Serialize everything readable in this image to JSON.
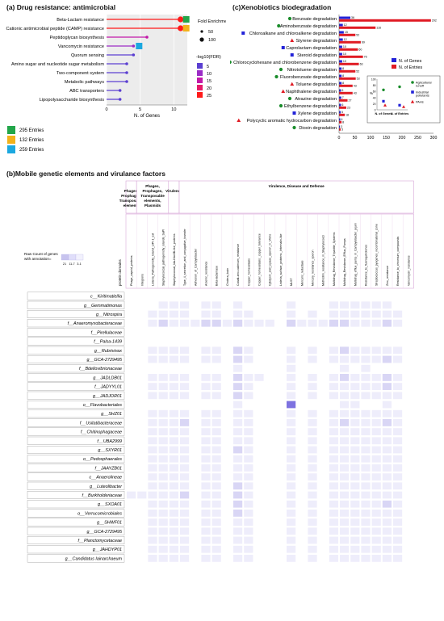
{
  "panel_a": {
    "title": "(a) Drug resistance: antimicrobial",
    "legend_size_title": "Fold Enrichment",
    "legend_size_items": [
      "50",
      "100"
    ],
    "legend_color_title": "-log10(FDR)",
    "legend_color_items": [
      {
        "label": "5",
        "color": "#5b3fd1"
      },
      {
        "label": "10",
        "color": "#9b2cc6"
      },
      {
        "label": "15",
        "color": "#c218a8"
      },
      {
        "label": "20",
        "color": "#e61a6a"
      },
      {
        "label": "25",
        "color": "#ff1a1a"
      }
    ],
    "entry_legend": [
      {
        "label": "295 Entries",
        "color": "#22a64a"
      },
      {
        "label": "132 Entries",
        "color": "#f2b21b"
      },
      {
        "label": "259 Entries",
        "color": "#1ba8e0"
      }
    ]
  },
  "panel_c": {
    "title": "(c)Xenobiotics biodegradation",
    "legend": [
      {
        "label": "N. of Genes",
        "color": "#2323d8"
      },
      {
        "label": "N. of Entries",
        "color": "#e01b24"
      }
    ],
    "inset": {
      "x_labels": [
        "N. of Genes",
        "N. of Entries"
      ],
      "y_label": "%",
      "y_ticks": [
        "100",
        "80",
        "60",
        "40",
        "20",
        "0"
      ],
      "legend": [
        {
          "label": "Agricultural runoff",
          "color": "#1a8c2b",
          "shape": "circle"
        },
        {
          "label": "Industrial pollutants",
          "color": "#2323d8",
          "shape": "square"
        },
        {
          "label": "PAHs",
          "color": "#e01b24",
          "shape": "triangle"
        }
      ]
    }
  },
  "panel_b": {
    "title": "(b)Mobile genetic elements and virulance factors",
    "groups": [
      {
        "label": "Phages, Prophages, Transposable elements",
        "span": 1
      },
      {
        "label": "Phages, Prophages, Transposable elements, Plasmids",
        "span": 3
      },
      {
        "label": "Virulence",
        "span": 1
      },
      {
        "label": "Virulence, Disease and Defense",
        "span": 22
      }
    ],
    "columns": [
      "Phage_capsid_proteins",
      "Integrons",
      "Listeria_Pathogenicity_Island_LIPI-1_ext",
      "Staphylococcal_pathogenicity_islands_SaPI",
      "Staphylococcal_Ida-Nbc0B-like_proteins",
      "Type_4_secretion_and_conjugative_transfer",
      "Adhesion_of_Campylobacter",
      "Arsenic_resistance",
      "Beta-lactamase",
      "Cholera_toxin",
      "Cobalt-zinc-cadmium_resistance",
      "Copper_homeostasis",
      "Copper_homeostasis:_copper_tolerance",
      "Cytolysin_and_Lipase_operon_in_Vibrio",
      "Listeria_surface_proteins:_Internalin-like",
      "MLST",
      "Mercuric_reductase",
      "Mercury_resistance_operon",
      "Methicillin_resistance_in_Staphylococci",
      "Multidrug_Resistance_Tripartite_Systems",
      "Multidrug_Resistance_Efflux_Pumps",
      "Multidrug_efflux_pump_in_Campylobacter_jejuni",
      "Resistance_to_fluoroquinolones",
      "Streptococcus_pyogenes_recombinatorial_zone",
      "Zinc_resistance",
      "Resistance_to_chromium_compounds",
      "Vancomycin_resistance"
    ],
    "row_axis_label": "protein domains",
    "legend_title": "Raw Count of genes with annotation=",
    "legend_ticks": [
      "21",
      "11-7",
      "3-1"
    ],
    "rows": [
      "c__Kiritimatiellia",
      "g__Gemmatimonas",
      "g__Nitrospira",
      "f__Anaeromyxobacteraceae",
      "f__Pirellulaceae",
      "f__Palsa-1439",
      "g__Rubrivivax",
      "g__GCA-2729495",
      "f__Bdellovibrionaceae",
      "g__JADLDB01",
      "f__JADYYL01",
      "g__JADJOR01",
      "o__Flavobacteriales",
      "g__SHZ01",
      "f__Usitatibacteraceae",
      "f__Chitinophagaceae",
      "f__UBA2999",
      "g__SXYR01",
      "o__Pedosphaerales",
      "f__JAAYZB01",
      "c__Anaerolineae",
      "g__Luteolibacter",
      "f__Burkholderiaceae",
      "g__SXOA01",
      "o__Verrucomicrobiales",
      "g__SHWF01",
      "g__GCA-2729495",
      "f__Planctomycetaceae",
      "g__JAHDYP01",
      "g__Candidatus_Iainarchaeum"
    ],
    "matrix": [
      [
        0,
        0,
        0,
        0,
        0,
        0,
        0,
        0,
        0,
        0,
        0,
        0,
        0,
        0,
        0,
        0,
        0,
        0,
        0,
        0,
        0,
        0,
        0,
        0,
        0,
        0,
        0
      ],
      [
        0,
        0,
        0,
        1,
        1,
        1,
        0,
        1,
        1,
        0,
        1,
        0,
        0,
        0,
        0,
        1,
        0,
        0,
        0,
        1,
        1,
        1,
        1,
        1,
        1,
        0,
        0
      ],
      [
        0,
        0,
        1,
        1,
        1,
        1,
        0,
        1,
        1,
        0,
        1,
        1,
        0,
        0,
        0,
        1,
        0,
        1,
        0,
        1,
        1,
        1,
        1,
        1,
        1,
        1,
        0
      ],
      [
        0,
        0,
        1,
        2,
        1,
        1,
        1,
        2,
        2,
        1,
        2,
        1,
        1,
        1,
        0,
        2,
        1,
        1,
        1,
        2,
        2,
        1,
        1,
        1,
        2,
        1,
        0
      ],
      [
        0,
        0,
        0,
        0,
        0,
        0,
        0,
        0,
        0,
        0,
        0,
        0,
        0,
        0,
        0,
        0,
        0,
        0,
        0,
        0,
        0,
        0,
        0,
        0,
        0,
        0,
        0
      ],
      [
        0,
        0,
        0,
        0,
        0,
        0,
        0,
        0,
        0,
        0,
        0,
        0,
        0,
        0,
        0,
        0,
        0,
        0,
        0,
        0,
        0,
        0,
        0,
        0,
        0,
        0,
        0
      ],
      [
        0,
        0,
        1,
        1,
        1,
        1,
        0,
        1,
        1,
        0,
        2,
        1,
        0,
        0,
        0,
        1,
        0,
        1,
        0,
        1,
        2,
        1,
        1,
        1,
        1,
        1,
        0
      ],
      [
        0,
        0,
        1,
        1,
        1,
        1,
        0,
        1,
        1,
        0,
        2,
        1,
        0,
        0,
        0,
        1,
        0,
        1,
        0,
        1,
        1,
        1,
        1,
        1,
        2,
        1,
        0
      ],
      [
        0,
        0,
        0,
        0,
        0,
        0,
        0,
        0,
        0,
        0,
        1,
        0,
        0,
        0,
        0,
        1,
        0,
        0,
        0,
        0,
        1,
        0,
        1,
        0,
        0,
        0,
        0
      ],
      [
        0,
        0,
        1,
        1,
        1,
        1,
        0,
        1,
        1,
        0,
        2,
        1,
        1,
        0,
        0,
        1,
        0,
        1,
        0,
        1,
        2,
        1,
        1,
        1,
        2,
        1,
        0
      ],
      [
        0,
        0,
        1,
        1,
        1,
        1,
        0,
        1,
        1,
        0,
        2,
        1,
        0,
        0,
        0,
        1,
        0,
        1,
        0,
        1,
        1,
        1,
        1,
        1,
        2,
        1,
        0
      ],
      [
        0,
        0,
        1,
        1,
        1,
        1,
        0,
        1,
        1,
        0,
        2,
        1,
        0,
        0,
        0,
        1,
        0,
        1,
        0,
        1,
        1,
        1,
        1,
        1,
        1,
        1,
        0
      ],
      [
        0,
        0,
        0,
        0,
        0,
        0,
        0,
        0,
        0,
        0,
        1,
        0,
        0,
        0,
        0,
        3,
        0,
        0,
        0,
        0,
        1,
        1,
        0,
        0,
        1,
        0,
        0
      ],
      [
        0,
        0,
        1,
        1,
        1,
        1,
        0,
        1,
        1,
        0,
        1,
        1,
        0,
        0,
        0,
        1,
        0,
        1,
        0,
        1,
        1,
        1,
        1,
        1,
        1,
        1,
        0
      ],
      [
        0,
        0,
        1,
        1,
        1,
        2,
        0,
        1,
        1,
        0,
        1,
        1,
        0,
        0,
        0,
        1,
        0,
        1,
        0,
        1,
        2,
        1,
        1,
        1,
        2,
        1,
        0
      ],
      [
        0,
        0,
        1,
        1,
        1,
        1,
        0,
        1,
        1,
        0,
        1,
        1,
        0,
        0,
        0,
        1,
        0,
        1,
        0,
        1,
        1,
        1,
        1,
        1,
        1,
        1,
        0
      ],
      [
        0,
        0,
        1,
        1,
        1,
        1,
        0,
        1,
        1,
        0,
        1,
        1,
        0,
        0,
        0,
        1,
        0,
        1,
        0,
        1,
        1,
        1,
        1,
        1,
        1,
        1,
        0
      ],
      [
        0,
        0,
        1,
        1,
        1,
        1,
        0,
        1,
        1,
        0,
        2,
        1,
        0,
        0,
        0,
        1,
        0,
        1,
        0,
        1,
        1,
        1,
        1,
        1,
        1,
        1,
        0
      ],
      [
        0,
        0,
        1,
        1,
        1,
        1,
        0,
        1,
        1,
        0,
        1,
        1,
        0,
        0,
        0,
        1,
        0,
        1,
        0,
        1,
        1,
        1,
        1,
        1,
        1,
        1,
        0
      ],
      [
        0,
        0,
        1,
        1,
        1,
        1,
        0,
        1,
        1,
        0,
        1,
        1,
        0,
        0,
        0,
        1,
        0,
        1,
        0,
        1,
        1,
        1,
        1,
        1,
        1,
        1,
        0
      ],
      [
        0,
        0,
        1,
        1,
        1,
        1,
        0,
        1,
        1,
        0,
        1,
        1,
        0,
        0,
        0,
        1,
        0,
        1,
        0,
        1,
        1,
        1,
        1,
        1,
        1,
        1,
        0
      ],
      [
        0,
        0,
        1,
        1,
        1,
        1,
        0,
        1,
        1,
        0,
        2,
        1,
        0,
        0,
        0,
        1,
        0,
        1,
        0,
        1,
        1,
        1,
        1,
        1,
        1,
        1,
        0
      ],
      [
        1,
        1,
        1,
        1,
        1,
        2,
        0,
        1,
        1,
        0,
        2,
        1,
        0,
        0,
        0,
        1,
        0,
        1,
        0,
        1,
        1,
        1,
        1,
        1,
        1,
        1,
        0
      ],
      [
        0,
        0,
        1,
        1,
        1,
        1,
        0,
        1,
        1,
        0,
        2,
        1,
        0,
        0,
        0,
        1,
        0,
        1,
        0,
        1,
        1,
        1,
        1,
        1,
        2,
        1,
        0
      ],
      [
        0,
        0,
        1,
        1,
        1,
        1,
        0,
        1,
        1,
        0,
        2,
        1,
        0,
        0,
        0,
        1,
        0,
        1,
        0,
        1,
        1,
        1,
        1,
        1,
        1,
        1,
        0
      ],
      [
        0,
        0,
        1,
        1,
        1,
        1,
        0,
        1,
        1,
        0,
        1,
        1,
        0,
        0,
        0,
        1,
        0,
        1,
        0,
        1,
        1,
        1,
        1,
        1,
        1,
        1,
        0
      ],
      [
        0,
        0,
        1,
        1,
        1,
        1,
        0,
        1,
        1,
        0,
        1,
        1,
        0,
        0,
        0,
        1,
        0,
        1,
        0,
        1,
        1,
        1,
        1,
        1,
        1,
        1,
        0
      ],
      [
        0,
        0,
        1,
        1,
        1,
        1,
        0,
        1,
        1,
        0,
        1,
        1,
        0,
        0,
        0,
        1,
        0,
        1,
        0,
        1,
        1,
        1,
        1,
        1,
        1,
        1,
        0
      ],
      [
        0,
        0,
        1,
        1,
        1,
        1,
        0,
        1,
        1,
        0,
        1,
        1,
        0,
        0,
        0,
        1,
        0,
        1,
        0,
        1,
        1,
        1,
        1,
        1,
        1,
        1,
        0
      ],
      [
        0,
        0,
        1,
        1,
        1,
        1,
        0,
        1,
        1,
        0,
        1,
        1,
        0,
        0,
        0,
        1,
        0,
        1,
        0,
        1,
        1,
        1,
        1,
        1,
        1,
        1,
        0
      ]
    ]
  },
  "chart_data": [
    {
      "type": "scatter",
      "title": "(a) Drug resistance: antimicrobial",
      "xlabel": "N. of Genes",
      "xlim": [
        0,
        12
      ],
      "xticks": [
        0,
        5,
        10
      ],
      "categories": [
        "Beta-Lactam resistance",
        "Cationic antimicrobial peptide (CAMP) resistance",
        "Peptidoglycan biosynthesis",
        "Vancomycin resistance",
        "Quorum sensing",
        "Amino sugar and nucleotide sugar metabolism",
        "Two-component system",
        "Metabolic pathways",
        "ABC transporters",
        "Lipopolysaccharide biosynthesis"
      ],
      "values": [
        11,
        11,
        6,
        4,
        4,
        3,
        3,
        3,
        2,
        2
      ],
      "fold_enrichment": [
        100,
        100,
        50,
        50,
        50,
        50,
        50,
        50,
        50,
        50
      ],
      "neg_log10_fdr": [
        25,
        25,
        15,
        10,
        5,
        5,
        5,
        5,
        5,
        5
      ],
      "entry_badges": [
        "295 Entries",
        "132 Entries",
        "",
        "259 Entries",
        "",
        "",
        "",
        "",
        "",
        ""
      ]
    },
    {
      "type": "bar",
      "title": "(c)Xenobiotics biodegradation",
      "xlim": [
        0,
        300
      ],
      "xticks": [
        0,
        50,
        100,
        150,
        200,
        250,
        300
      ],
      "categories": [
        "Benzoate degradation",
        "Aminobenzoate degradation",
        "Chloroalkane and chloroalkene degradation",
        "Styrene degradation",
        "Caprolactam degradation",
        "Steroid degradation",
        "Chlorocyclohexane and chlorobenzene degradation",
        "Nitrotoluene degradation",
        "Fluorobenzoate degradation",
        "Toluene degradation",
        "Naphthalene degradation",
        "Atrazine degradation",
        "Ethylbenzene degradation",
        "Xylene degradation",
        "Polycyclic aromatic hydrocarbon degradation",
        "Dioxin degradation"
      ],
      "markers": [
        "circle",
        "circle",
        "square",
        "triangle",
        "square",
        "square",
        "circle",
        "circle",
        "circle",
        "triangle",
        "triangle",
        "circle",
        "circle",
        "square",
        "triangle",
        "circle"
      ],
      "series": [
        {
          "name": "N. of Genes",
          "values": [
            36,
            12,
            15,
            12,
            10,
            10,
            10,
            8,
            8,
            8,
            6,
            7,
            6,
            5,
            4,
            3
          ]
        },
        {
          "name": "N. of Entries",
          "values": [
            292,
            116,
            52,
            69,
            60,
            76,
            63,
            52,
            53,
            43,
            43,
            27,
            23,
            18,
            8,
            5
          ]
        }
      ]
    },
    {
      "type": "heatmap",
      "title": "(b)Mobile genetic elements and virulance factors",
      "ylabel": "protein domains"
    }
  ]
}
